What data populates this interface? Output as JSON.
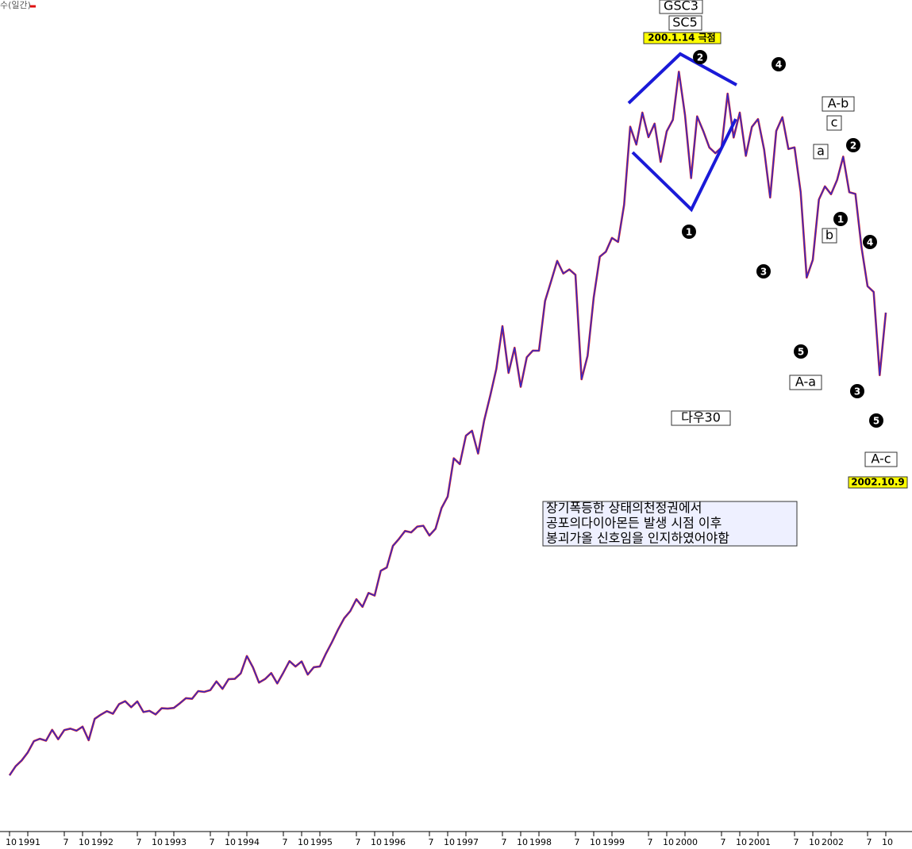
{
  "chart_data": {
    "type": "line",
    "legend": "수(일간)",
    "series": [
      {
        "name": "다우30",
        "color": "#2a2ad0",
        "values": [
          2442,
          2560,
          2634,
          2737,
          2882,
          2913,
          2888,
          3028,
          2907,
          3025,
          3044,
          3017,
          3069,
          2895,
          3169,
          3223,
          3268,
          3236,
          3359,
          3397,
          3319,
          3394,
          3257,
          3272,
          3226,
          3306,
          3301,
          3310,
          3370,
          3436,
          3428,
          3527,
          3516,
          3540,
          3651,
          3555,
          3681,
          3684,
          3754,
          3978,
          3832,
          3636,
          3682,
          3758,
          3625,
          3765,
          3913,
          3843,
          3908,
          3739,
          3834,
          3844,
          4011,
          4158,
          4321,
          4465,
          4556,
          4709,
          4611,
          4790,
          4756,
          5075,
          5117,
          5395,
          5486,
          5587,
          5569,
          5643,
          5655,
          5529,
          5616,
          5882,
          6029,
          6522,
          6448,
          6813,
          6877,
          6584,
          7009,
          7331,
          7673,
          8223,
          7622,
          7945,
          7442,
          7823,
          7908,
          7907,
          8546,
          8800,
          9063,
          8900,
          8952,
          8883,
          7539,
          7843,
          8592,
          9117,
          9181,
          9359,
          9307,
          9786,
          10789,
          10560,
          10971,
          10655,
          10829,
          10337,
          10730,
          10878,
          11497,
          10941,
          10128,
          10922,
          10734,
          10522,
          10448,
          10522,
          11215,
          10651,
          10971,
          10415,
          10787,
          10887,
          10495,
          9879,
          10735,
          10912,
          10502,
          10523,
          9950,
          8848,
          9075,
          9852,
          10022,
          9920,
          10106,
          10404,
          9946,
          9925,
          9243,
          8737,
          8664,
          7592,
          8397
        ]
      }
    ],
    "x": [
      "1990-10",
      "1990-11",
      "1990-12",
      "1991-01",
      "1991-02",
      "1991-03",
      "1991-04",
      "1991-05",
      "1991-06",
      "1991-07",
      "1991-08",
      "1991-09",
      "1991-10",
      "1991-11",
      "1991-12",
      "1992-01",
      "1992-02",
      "1992-03",
      "1992-04",
      "1992-05",
      "1992-06",
      "1992-07",
      "1992-08",
      "1992-09",
      "1992-10",
      "1992-11",
      "1992-12",
      "1993-01",
      "1993-02",
      "1993-03",
      "1993-04",
      "1993-05",
      "1993-06",
      "1993-07",
      "1993-08",
      "1993-09",
      "1993-10",
      "1993-11",
      "1993-12",
      "1994-01",
      "1994-02",
      "1994-03",
      "1994-04",
      "1994-05",
      "1994-06",
      "1994-07",
      "1994-08",
      "1994-09",
      "1994-10",
      "1994-11",
      "1994-12",
      "1995-01",
      "1995-02",
      "1995-03",
      "1995-04",
      "1995-05",
      "1995-06",
      "1995-07",
      "1995-08",
      "1995-09",
      "1995-10",
      "1995-11",
      "1995-12",
      "1996-01",
      "1996-02",
      "1996-03",
      "1996-04",
      "1996-05",
      "1996-06",
      "1996-07",
      "1996-08",
      "1996-09",
      "1996-10",
      "1996-11",
      "1996-12",
      "1997-01",
      "1997-02",
      "1997-03",
      "1997-04",
      "1997-05",
      "1997-06",
      "1997-07",
      "1997-08",
      "1997-09",
      "1997-10",
      "1997-11",
      "1997-12",
      "1998-01",
      "1998-02",
      "1998-03",
      "1998-04",
      "1998-05",
      "1998-06",
      "1998-07",
      "1998-08",
      "1998-09",
      "1998-10",
      "1998-11",
      "1998-12",
      "1999-01",
      "1999-02",
      "1999-03",
      "1999-04",
      "1999-05",
      "1999-06",
      "1999-07",
      "1999-08",
      "1999-09",
      "1999-10",
      "1999-11",
      "1999-12",
      "2000-01",
      "2000-02",
      "2000-03",
      "2000-04",
      "2000-05",
      "2000-06",
      "2000-07",
      "2000-08",
      "2000-09",
      "2000-10",
      "2000-11",
      "2000-12",
      "2001-01",
      "2001-02",
      "2001-03",
      "2001-04",
      "2001-05",
      "2001-06",
      "2001-07",
      "2001-08",
      "2001-09",
      "2001-10",
      "2001-11",
      "2001-12",
      "2002-01",
      "2002-02",
      "2002-03",
      "2002-04",
      "2002-05",
      "2002-06",
      "2002-07",
      "2002-08",
      "2002-09",
      "2002-10"
    ],
    "ylim": [
      1750,
      12420
    ],
    "xticks": [
      {
        "value": "1990-10",
        "label": "10"
      },
      {
        "value": "1991-01",
        "label": "1991"
      },
      {
        "value": "1991-07",
        "label": "7"
      },
      {
        "value": "1991-10",
        "label": "10"
      },
      {
        "value": "1992-01",
        "label": "1992"
      },
      {
        "value": "1992-07",
        "label": "7"
      },
      {
        "value": "1992-10",
        "label": "10"
      },
      {
        "value": "1993-01",
        "label": "1993"
      },
      {
        "value": "1993-07",
        "label": "7"
      },
      {
        "value": "1993-10",
        "label": "10"
      },
      {
        "value": "1994-01",
        "label": "1994"
      },
      {
        "value": "1994-07",
        "label": "7"
      },
      {
        "value": "1994-10",
        "label": "10"
      },
      {
        "value": "1995-01",
        "label": "1995"
      },
      {
        "value": "1995-07",
        "label": "7"
      },
      {
        "value": "1995-10",
        "label": "10"
      },
      {
        "value": "1996-01",
        "label": "1996"
      },
      {
        "value": "1996-07",
        "label": "7"
      },
      {
        "value": "1996-10",
        "label": "10"
      },
      {
        "value": "1997-01",
        "label": "1997"
      },
      {
        "value": "1997-07",
        "label": "7"
      },
      {
        "value": "1997-10",
        "label": "10"
      },
      {
        "value": "1998-01",
        "label": "1998"
      },
      {
        "value": "1998-07",
        "label": "7"
      },
      {
        "value": "1998-10",
        "label": "10"
      },
      {
        "value": "1999-01",
        "label": "1999"
      },
      {
        "value": "1999-07",
        "label": "7"
      },
      {
        "value": "1999-10",
        "label": "10"
      },
      {
        "value": "2000-01",
        "label": "2000"
      },
      {
        "value": "2000-07",
        "label": "7"
      },
      {
        "value": "2000-10",
        "label": "10"
      },
      {
        "value": "2001-01",
        "label": "2001"
      },
      {
        "value": "2001-07",
        "label": "7"
      },
      {
        "value": "2001-10",
        "label": "10"
      },
      {
        "value": "2002-01",
        "label": "2002"
      },
      {
        "value": "2002-07",
        "label": "7"
      },
      {
        "value": "2002-10",
        "label": "10"
      }
    ],
    "annotations": [
      "GSC3",
      "SC5",
      "200.1.14 극점",
      "A-b",
      "c",
      "a",
      "b",
      "A-a",
      "다우30",
      "A-c",
      "2002.10.9"
    ],
    "wave_labels": [
      "2",
      "1",
      "3",
      "4",
      "5",
      "2",
      "1",
      "4",
      "3",
      "5"
    ],
    "note": [
      "장기폭등한 상태의천정권에서",
      "공포의다이아몬든 발생 시점 이후",
      "봉괴가올 신호임을 인지하였어야함"
    ]
  }
}
